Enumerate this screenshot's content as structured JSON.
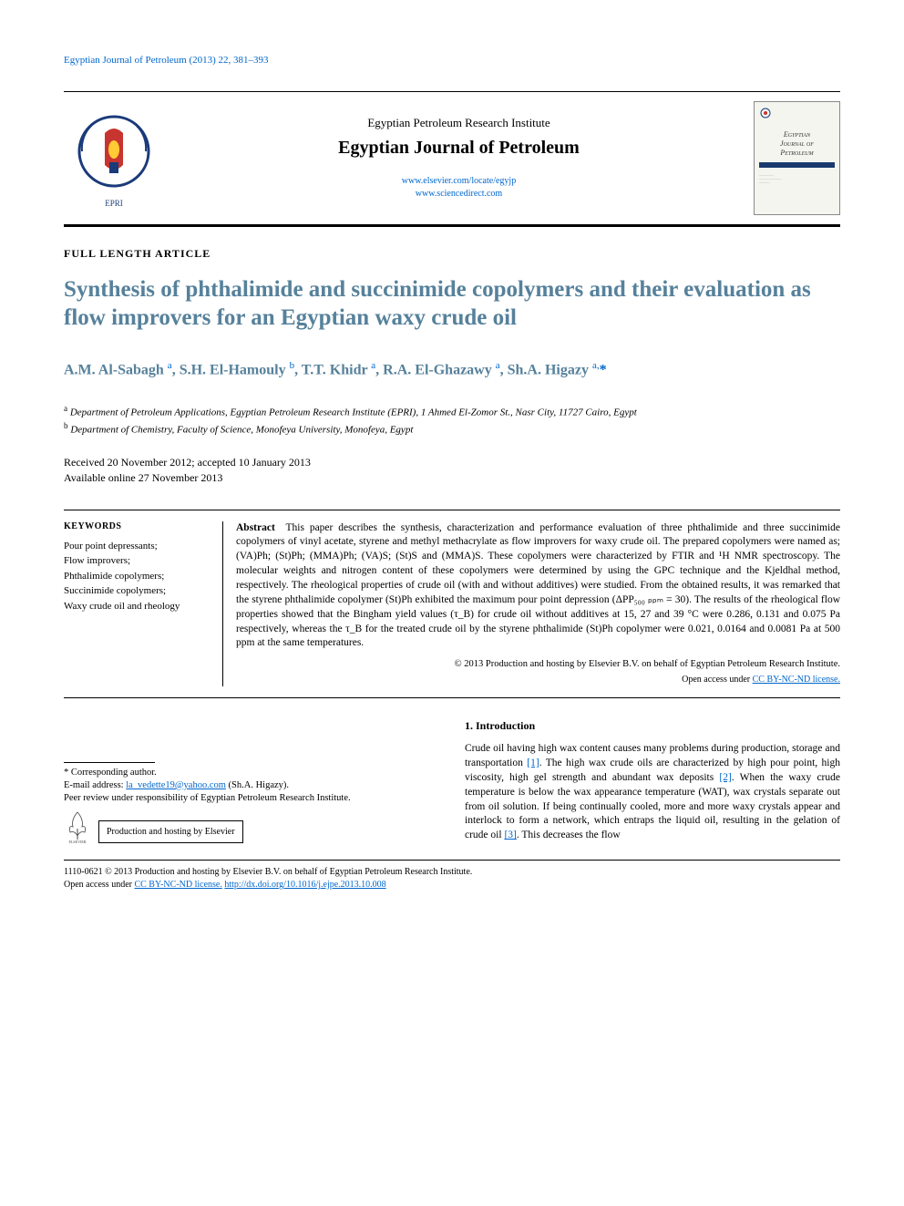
{
  "running_header": "Egyptian Journal of Petroleum (2013) 22, 381–393",
  "masthead": {
    "publisher": "Egyptian Petroleum Research Institute",
    "journal": "Egyptian Journal of Petroleum",
    "link1": "www.elsevier.com/locate/egyjp",
    "link2": "www.sciencedirect.com",
    "cover_caption_top": "Egyptian",
    "cover_caption_mid": "Journal of",
    "cover_caption_bot": "Petroleum"
  },
  "article": {
    "type": "FULL LENGTH ARTICLE",
    "title": "Synthesis of phthalimide and succinimide copolymers and their evaluation as flow improvers for an Egyptian waxy crude oil",
    "authors_html": "A.M. Al-Sabagh <sup>a</sup>, S.H. El-Hamouly <sup>b</sup>, T.T. Khidr <sup>a</sup>, R.A. El-Ghazawy <sup>a</sup>, Sh.A. Higazy <sup>a,</sup><span class='asterisk'>*</span>",
    "affil_a": "Department of Petroleum Applications, Egyptian Petroleum Research Institute (EPRI), 1 Ahmed El-Zomor St., Nasr City, 11727 Cairo, Egypt",
    "affil_b": "Department of Chemistry, Faculty of Science, Monofeya University, Monofeya, Egypt",
    "dates_line1": "Received 20 November 2012; accepted 10 January 2013",
    "dates_line2": "Available online 27 November 2013"
  },
  "keywords": {
    "heading": "KEYWORDS",
    "items": "Pour point depressants;\nFlow improvers;\nPhthalimide copolymers;\nSuccinimide copolymers;\nWaxy crude oil and rheology"
  },
  "abstract": {
    "label": "Abstract",
    "body": "This paper describes the synthesis, characterization and performance evaluation of three phthalimide and three succinimide copolymers of vinyl acetate, styrene and methyl methacrylate as flow improvers for waxy crude oil. The prepared copolymers were named as; (VA)Ph; (St)Ph; (MMA)Ph; (VA)S; (St)S and (MMA)S. These copolymers were characterized by FTIR and ¹H NMR spectroscopy. The molecular weights and nitrogen content of these copolymers were determined by using the GPC technique and the Kjeldhal method, respectively. The rheological properties of crude oil (with and without additives) were studied. From the obtained results, it was remarked that the styrene phthalimide copolymer (St)Ph exhibited the maximum pour point depression (ΔPP₅₀₀ ₚₚₘ = 30). The results of the rheological flow properties showed that the Bingham yield values (τ_B) for crude oil without additives at 15, 27 and 39 °C were 0.286, 0.131 and 0.075 Pa respectively, whereas the τ_B for the treated crude oil by the styrene phthalimide (St)Ph copolymer were 0.021, 0.0164 and 0.0081 Pa at 500 ppm at the same temperatures.",
    "copyright": "© 2013 Production and hosting by Elsevier B.V. on behalf of Egyptian Petroleum Research Institute.",
    "license_prefix": "Open access under ",
    "license_text": "CC BY-NC-ND license."
  },
  "footnotes": {
    "corr": "* Corresponding author.",
    "email_label": "E-mail address: ",
    "email": "la_vedette19@yahoo.com",
    "email_suffix": " (Sh.A. Higazy).",
    "peer": "Peer review under responsibility of Egyptian Petroleum Research Institute.",
    "hosting": "Production and hosting by Elsevier"
  },
  "intro": {
    "heading": "1. Introduction",
    "body_pre": "Crude oil having high wax content causes many problems during production, storage and transportation ",
    "ref1": "[1]",
    "body_mid1": ". The high wax crude oils are characterized by high pour point, high viscosity, high gel strength and abundant wax deposits ",
    "ref2": "[2]",
    "body_mid2": ". When the waxy crude temperature is below the wax appearance temperature (WAT), wax crystals separate out from oil solution. If being continually cooled, more and more waxy crystals appear and interlock to form a network, which entraps the liquid oil, resulting in the gelation of crude oil ",
    "ref3": "[3]",
    "body_post": ". This decreases the flow"
  },
  "bottom": {
    "line1_pre": "1110-0621 © 2013 Production and hosting by Elsevier B.V. on behalf of Egyptian Petroleum Research Institute.",
    "line2_pre": "Open access under ",
    "license": "CC BY-NC-ND license.",
    "doi": "http://dx.doi.org/10.1016/j.ejpe.2013.10.008"
  },
  "colors": {
    "heading_blue": "#56819b",
    "link_blue": "#0066cc",
    "logo_blue": "#1a3a7a",
    "logo_red": "#c8342f"
  }
}
